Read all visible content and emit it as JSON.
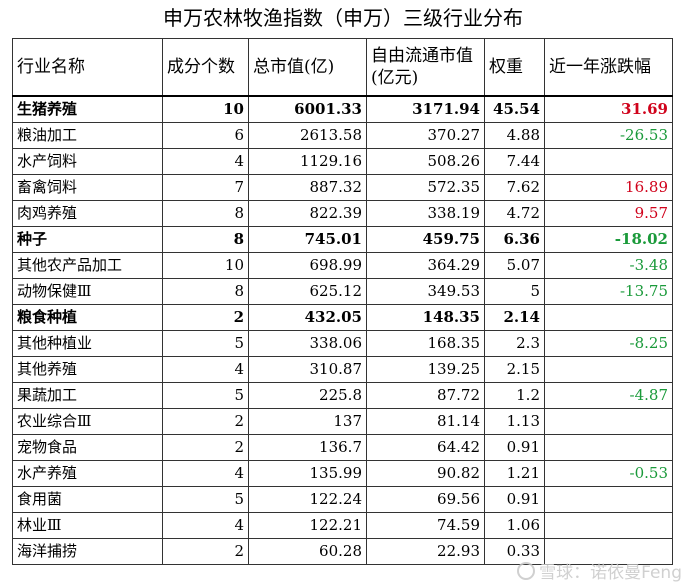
{
  "title": "申万农林牧渔指数（申万）三级行业分布",
  "headers": {
    "name": "行业名称",
    "count": "成分个数",
    "mcap": "总市值(亿)",
    "float_mcap": "自由流通市值(亿元)",
    "weight": "权重",
    "change": "近一年涨跌幅"
  },
  "rows": [
    {
      "name": "生猪养殖",
      "count": "10",
      "mcap": "6001.33",
      "float_mcap": "3171.94",
      "weight": "45.54",
      "change": "31.69",
      "bold": true,
      "change_color": "red"
    },
    {
      "name": "粮油加工",
      "count": "6",
      "mcap": "2613.58",
      "float_mcap": "370.27",
      "weight": "4.88",
      "change": "-26.53",
      "bold": false,
      "change_color": "green"
    },
    {
      "name": "水产饲料",
      "count": "4",
      "mcap": "1129.16",
      "float_mcap": "508.26",
      "weight": "7.44",
      "change": "",
      "bold": false,
      "change_color": ""
    },
    {
      "name": "畜禽饲料",
      "count": "7",
      "mcap": "887.32",
      "float_mcap": "572.35",
      "weight": "7.62",
      "change": "16.89",
      "bold": false,
      "change_color": "red"
    },
    {
      "name": "肉鸡养殖",
      "count": "8",
      "mcap": "822.39",
      "float_mcap": "338.19",
      "weight": "4.72",
      "change": "9.57",
      "bold": false,
      "change_color": "red"
    },
    {
      "name": "种子",
      "count": "8",
      "mcap": "745.01",
      "float_mcap": "459.75",
      "weight": "6.36",
      "change": "-18.02",
      "bold": true,
      "change_color": "green"
    },
    {
      "name": "其他农产品加工",
      "count": "10",
      "mcap": "698.99",
      "float_mcap": "364.29",
      "weight": "5.07",
      "change": "-3.48",
      "bold": false,
      "change_color": "green"
    },
    {
      "name": "动物保健Ⅲ",
      "count": "8",
      "mcap": "625.12",
      "float_mcap": "349.53",
      "weight": "5",
      "change": "-13.75",
      "bold": false,
      "change_color": "green"
    },
    {
      "name": "粮食种植",
      "count": "2",
      "mcap": "432.05",
      "float_mcap": "148.35",
      "weight": "2.14",
      "change": "",
      "bold": true,
      "change_color": ""
    },
    {
      "name": "其他种植业",
      "count": "5",
      "mcap": "338.06",
      "float_mcap": "168.35",
      "weight": "2.3",
      "change": "-8.25",
      "bold": false,
      "change_color": "green"
    },
    {
      "name": "其他养殖",
      "count": "4",
      "mcap": "310.87",
      "float_mcap": "139.25",
      "weight": "2.15",
      "change": "",
      "bold": false,
      "change_color": ""
    },
    {
      "name": "果蔬加工",
      "count": "5",
      "mcap": "225.8",
      "float_mcap": "87.72",
      "weight": "1.2",
      "change": "-4.87",
      "bold": false,
      "change_color": "green"
    },
    {
      "name": "农业综合Ⅲ",
      "count": "2",
      "mcap": "137",
      "float_mcap": "81.14",
      "weight": "1.13",
      "change": "",
      "bold": false,
      "change_color": ""
    },
    {
      "name": "宠物食品",
      "count": "2",
      "mcap": "136.7",
      "float_mcap": "64.42",
      "weight": "0.91",
      "change": "",
      "bold": false,
      "change_color": ""
    },
    {
      "name": "水产养殖",
      "count": "4",
      "mcap": "135.99",
      "float_mcap": "90.82",
      "weight": "1.21",
      "change": "-0.53",
      "bold": false,
      "change_color": "green"
    },
    {
      "name": "食用菌",
      "count": "5",
      "mcap": "122.24",
      "float_mcap": "69.56",
      "weight": "0.91",
      "change": "",
      "bold": false,
      "change_color": ""
    },
    {
      "name": "林业Ⅲ",
      "count": "4",
      "mcap": "122.21",
      "float_mcap": "74.59",
      "weight": "1.06",
      "change": "",
      "bold": false,
      "change_color": ""
    },
    {
      "name": "海洋捕捞",
      "count": "2",
      "mcap": "60.28",
      "float_mcap": "22.93",
      "weight": "0.33",
      "change": "",
      "bold": false,
      "change_color": ""
    }
  ],
  "watermark": "雪球：诺依曼Feng",
  "colors": {
    "positive": "#d0021b",
    "negative": "#1a9a3a"
  }
}
